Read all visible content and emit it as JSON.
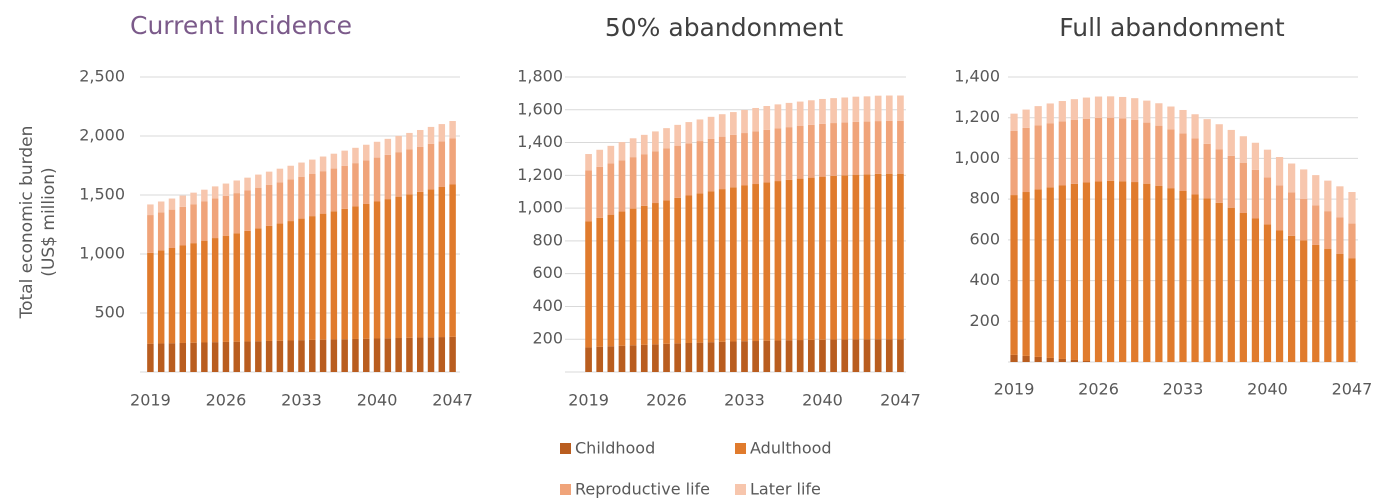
{
  "legend": [
    {
      "name": "Childhood",
      "color": "#b95d1f"
    },
    {
      "name": "Adulthood",
      "color": "#e07b2d"
    },
    {
      "name": "Reproductive life",
      "color": "#f0a47a"
    },
    {
      "name": "Later life",
      "color": "#f7c6ad"
    }
  ],
  "chart_data": [
    {
      "type": "bar",
      "title": "Current Incidence",
      "y_label": "Total economic burden (US$ million)",
      "categories": [
        "2019",
        null,
        null,
        null,
        null,
        null,
        null,
        "2026",
        null,
        null,
        null,
        null,
        null,
        null,
        "2033",
        null,
        null,
        null,
        null,
        null,
        null,
        "2040",
        null,
        null,
        null,
        null,
        null,
        null,
        "2047"
      ],
      "ylim": [
        0,
        2500
      ],
      "yticks": [
        500,
        {
          "value": 1000,
          "label": "1,000"
        },
        {
          "value": 1500,
          "label": "1,500"
        },
        {
          "value": 2000,
          "label": "2,000"
        },
        {
          "value": 2500,
          "label": "2,500"
        }
      ],
      "grid": true,
      "series": [
        {
          "values": [
            240,
            242,
            244,
            246,
            248,
            250,
            253,
            255,
            257,
            259,
            261,
            263,
            265,
            267,
            270,
            272,
            274,
            276,
            278,
            280,
            282,
            284,
            286,
            288,
            290,
            292,
            294,
            296,
            298
          ]
        },
        {
          "values": [
            770,
            789,
            807,
            826,
            844,
            863,
            882,
            900,
            919,
            937,
            956,
            975,
            993,
            1012,
            1030,
            1049,
            1068,
            1086,
            1105,
            1123,
            1142,
            1161,
            1179,
            1198,
            1216,
            1235,
            1254,
            1272,
            1291
          ]
        },
        {
          "values": [
            320,
            322,
            325,
            327,
            330,
            332,
            335,
            337,
            340,
            342,
            345,
            347,
            350,
            352,
            355,
            357,
            360,
            362,
            365,
            367,
            370,
            372,
            375,
            377,
            380,
            382,
            385,
            387,
            390
          ]
        },
        {
          "values": [
            90,
            92,
            94,
            96,
            98,
            100,
            103,
            105,
            107,
            109,
            111,
            113,
            115,
            117,
            120,
            122,
            124,
            126,
            128,
            130,
            132,
            134,
            136,
            138,
            140,
            142,
            144,
            146,
            148
          ]
        }
      ]
    },
    {
      "type": "bar",
      "title": "50% abandonment",
      "categories": [
        "2019",
        null,
        null,
        null,
        null,
        null,
        null,
        "2026",
        null,
        null,
        null,
        null,
        null,
        null,
        "2033",
        null,
        null,
        null,
        null,
        null,
        null,
        "2040",
        null,
        null,
        null,
        null,
        null,
        null,
        "2047"
      ],
      "ylim": [
        0,
        1800
      ],
      "yticks": [
        200,
        400,
        600,
        800,
        {
          "value": 1000,
          "label": "1,000"
        },
        {
          "value": 1200,
          "label": "1,200"
        },
        {
          "value": 1400,
          "label": "1,400"
        },
        {
          "value": 1600,
          "label": "1,600"
        },
        {
          "value": 1800,
          "label": "1,800"
        }
      ],
      "grid": true,
      "series": [
        {
          "values": [
            150,
            154,
            157,
            160,
            163,
            166,
            169,
            172,
            175,
            177,
            179,
            182,
            184,
            186,
            188,
            189,
            191,
            192,
            194,
            195,
            196,
            197,
            198,
            198,
            199,
            199,
            200,
            200,
            200
          ]
        },
        {
          "values": [
            770,
            787,
            803,
            819,
            834,
            848,
            862,
            875,
            888,
            900,
            911,
            921,
            932,
            941,
            950,
            958,
            966,
            973,
            979,
            985,
            990,
            995,
            999,
            1002,
            1005,
            1007,
            1009,
            1010,
            1010
          ]
        },
        {
          "values": [
            310,
            311,
            312,
            313,
            314,
            315,
            316,
            317,
            318,
            318,
            319,
            319,
            320,
            320,
            320,
            321,
            321,
            321,
            321,
            321,
            322,
            322,
            322,
            322,
            322,
            322,
            322,
            322,
            322
          ]
        },
        {
          "values": [
            100,
            104,
            108,
            111,
            115,
            118,
            121,
            124,
            127,
            130,
            132,
            135,
            137,
            139,
            141,
            143,
            145,
            147,
            148,
            149,
            150,
            152,
            152,
            153,
            154,
            154,
            155,
            155,
            155
          ]
        }
      ]
    },
    {
      "type": "bar",
      "title": "Full abandonment",
      "categories": [
        "2019",
        null,
        null,
        null,
        null,
        null,
        null,
        "2026",
        null,
        null,
        null,
        null,
        null,
        null,
        "2033",
        null,
        null,
        null,
        null,
        null,
        null,
        "2040",
        null,
        null,
        null,
        null,
        null,
        null,
        "2047"
      ],
      "ylim": [
        0,
        1400
      ],
      "yticks": [
        200,
        400,
        600,
        800,
        {
          "value": 1000,
          "label": "1,000"
        },
        {
          "value": 1200,
          "label": "1,200"
        },
        {
          "value": 1400,
          "label": "1,400"
        }
      ],
      "grid": true,
      "series": [
        {
          "values": [
            35,
            30,
            25,
            20,
            15,
            10,
            5,
            0,
            0,
            0,
            0,
            0,
            0,
            0,
            0,
            0,
            0,
            0,
            0,
            0,
            0,
            0,
            0,
            0,
            0,
            0,
            0,
            0,
            0
          ]
        },
        {
          "values": [
            785,
            805,
            823,
            838,
            852,
            865,
            877,
            887,
            890,
            888,
            884,
            876,
            866,
            854,
            840,
            823,
            803,
            782,
            758,
            732,
            705,
            676,
            646,
            620,
            597,
            575,
            555,
            532,
            510
          ]
        },
        {
          "values": [
            315,
            315,
            315,
            315,
            315,
            314,
            313,
            312,
            310,
            308,
            305,
            300,
            295,
            289,
            283,
            276,
            269,
            262,
            255,
            247,
            239,
            231,
            222,
            213,
            204,
            195,
            186,
            178,
            170
          ]
        },
        {
          "values": [
            85,
            90,
            94,
            97,
            100,
            102,
            104,
            105,
            105,
            106,
            107,
            108,
            110,
            112,
            115,
            118,
            121,
            124,
            127,
            130,
            133,
            136,
            139,
            142,
            145,
            148,
            150,
            153,
            155
          ]
        }
      ]
    }
  ]
}
